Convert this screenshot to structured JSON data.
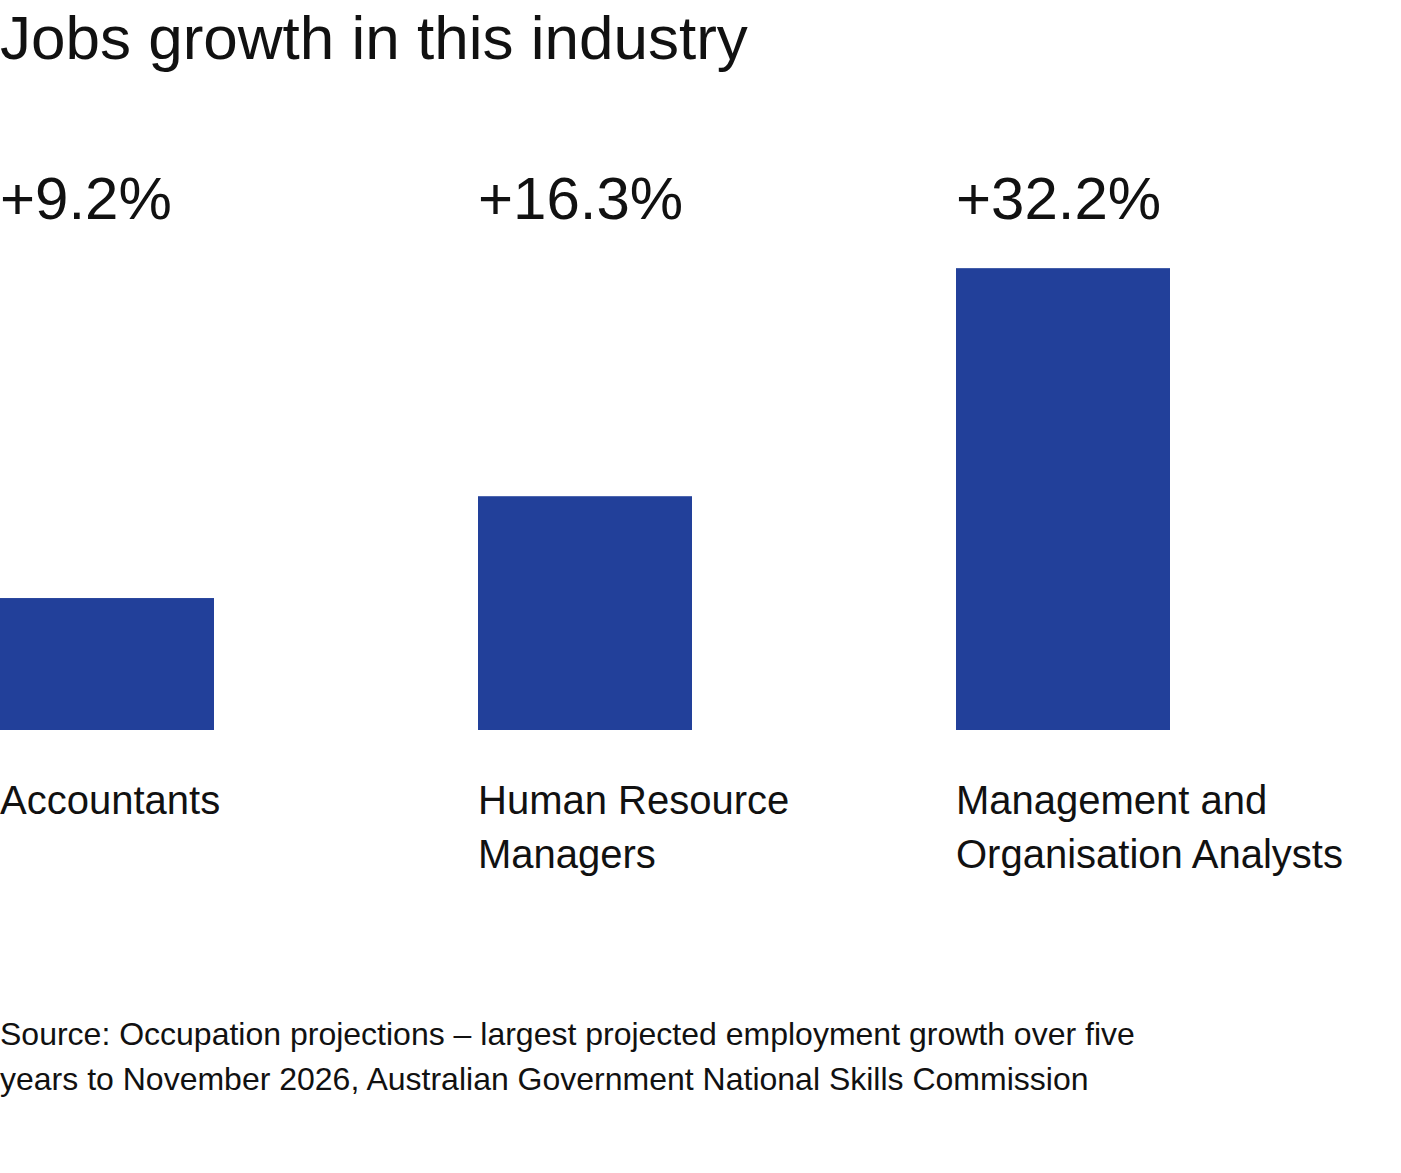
{
  "chart_data": {
    "type": "bar",
    "title": "Jobs growth in this industry",
    "categories": [
      "Accountants",
      "Human Resource Managers",
      "Management and Organisation Analysts"
    ],
    "values": [
      9.2,
      16.3,
      32.2
    ],
    "value_labels": [
      "+9.2%",
      "+16.3%",
      "+32.2%"
    ],
    "data_labels": true,
    "color": "#22409a",
    "ylim": [
      0,
      35
    ],
    "tick_labels": false,
    "grid": false,
    "source": "Source: Occupation projections – largest projected employment growth over five years to November 2026, Australian Government National Skills Commission"
  }
}
